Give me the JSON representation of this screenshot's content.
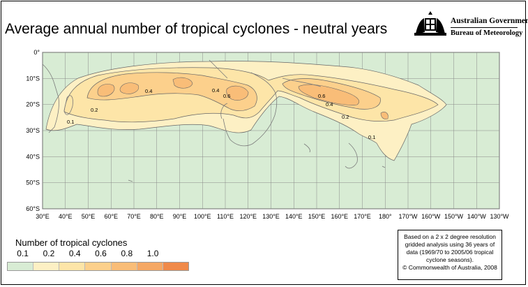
{
  "title": "Average annual number of tropical cyclones - neutral years",
  "logo": {
    "line1": "Australian Government",
    "line2": "Bureau of Meteorology",
    "emblem": "coat-of-arms-icon"
  },
  "map": {
    "lat_labels": [
      "0°",
      "10°S",
      "20°S",
      "30°S",
      "40°S",
      "50°S",
      "60°S"
    ],
    "lon_labels": [
      "30°E",
      "40°E",
      "50°E",
      "60°E",
      "70°E",
      "80°E",
      "90°E",
      "100°E",
      "110°E",
      "120°E",
      "130°E",
      "140°E",
      "150°E",
      "160°E",
      "170°E",
      "180°",
      "170°W",
      "160°W",
      "150°W",
      "140°W",
      "130°W"
    ],
    "contour_labels": [
      "0.1",
      "0.2",
      "0.4",
      "0.4",
      "0.6",
      "0.6",
      "0.4",
      "0.2",
      "0.1"
    ],
    "ocean_color": "#d8ecd4",
    "land_outline_color": "#808080"
  },
  "legend": {
    "title": "Number of tropical cyclones",
    "labels": [
      "0.1",
      "0.2",
      "0.4",
      "0.6",
      "0.8",
      "1.0"
    ],
    "colors": [
      "#d8ecd4",
      "#fdf0c4",
      "#fde5a8",
      "#fcd08c",
      "#f9bd78",
      "#f5a865",
      "#f08a4a"
    ]
  },
  "note": {
    "text": "Based on a 2 x 2 degree resolution gridded analysis using 36 years of data (1969/70 to 2005/06 tropical cyclone seasons).",
    "copyright": "© Commonwealth of Australia, 2008"
  }
}
